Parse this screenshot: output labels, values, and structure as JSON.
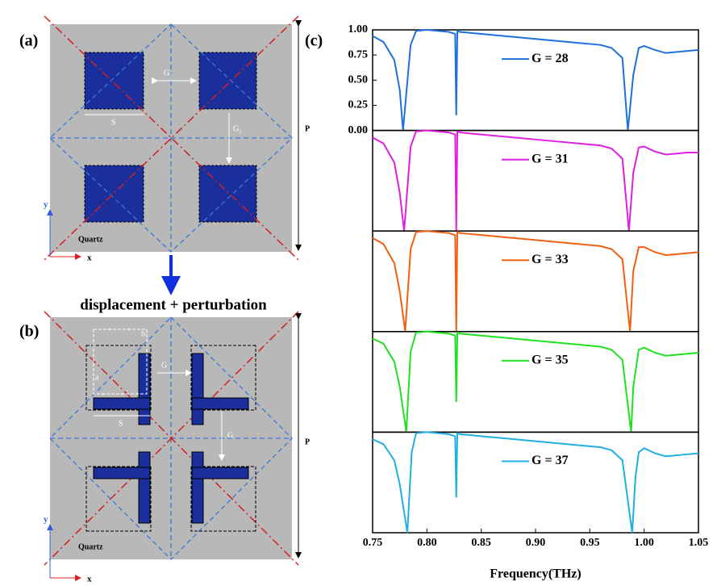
{
  "panel_labels": [
    "(a)",
    "(b)",
    "(c)"
  ],
  "panel_a": {
    "gap_labels": [
      "G₁",
      "G₁"
    ],
    "side": "S",
    "period": "P",
    "substrate": "Quartz",
    "axes": [
      "x",
      "y"
    ]
  },
  "transition": "displacement + perturbation",
  "panel_b": {
    "gap_labels": [
      "G",
      "G"
    ],
    "side": "S",
    "arm_labels": [
      "a",
      "b"
    ],
    "period": "P",
    "substrate": "Quartz",
    "axes": [
      "x",
      "y"
    ]
  },
  "chart_data": [
    {
      "type": "line",
      "xlim": [
        0.75,
        1.05
      ],
      "ylim": [
        0,
        1
      ],
      "yticks": [
        {
          "value": 1,
          "label": "1.00"
        },
        {
          "value": 0.75,
          "label": "0.75"
        },
        {
          "value": 0.5,
          "label": "0.50"
        },
        {
          "value": 0.25,
          "label": "0.25"
        },
        {
          "value": 0,
          "label": "0.00"
        }
      ],
      "x": [
        0.75,
        0.76,
        0.77,
        0.775,
        0.778,
        0.785,
        0.79,
        0.8,
        0.81,
        0.82,
        0.826,
        0.827,
        0.828,
        0.829,
        0.83,
        0.84,
        0.86,
        0.88,
        0.9,
        0.92,
        0.94,
        0.96,
        0.97,
        0.98,
        0.985,
        0.99,
        0.995,
        1.0,
        1.01,
        1.02,
        1.03,
        1.04,
        1.05
      ],
      "series": [
        {
          "name": "G = 28",
          "color": "#1f6fdc",
          "values": [
            0.94,
            0.88,
            0.7,
            0.4,
            0.0,
            0.85,
            0.99,
            1.0,
            0.99,
            0.98,
            0.96,
            0.15,
            0.99,
            0.99,
            0.98,
            0.97,
            0.95,
            0.93,
            0.91,
            0.89,
            0.87,
            0.85,
            0.82,
            0.72,
            0.0,
            0.55,
            0.82,
            0.84,
            0.8,
            0.77,
            0.78,
            0.79,
            0.8
          ]
        }
      ]
    },
    {
      "type": "line",
      "xlim": [
        0.75,
        1.05
      ],
      "ylim": [
        0,
        1
      ],
      "x": [
        0.75,
        0.76,
        0.77,
        0.775,
        0.779,
        0.785,
        0.79,
        0.8,
        0.81,
        0.82,
        0.826,
        0.827,
        0.828,
        0.829,
        0.83,
        0.84,
        0.86,
        0.88,
        0.9,
        0.92,
        0.94,
        0.96,
        0.97,
        0.98,
        0.986,
        0.99,
        0.995,
        1.0,
        1.01,
        1.02,
        1.03,
        1.04,
        1.05
      ],
      "series": [
        {
          "name": "G = 31",
          "color": "#e020e0",
          "values": [
            0.93,
            0.87,
            0.68,
            0.38,
            0.0,
            0.84,
            0.99,
            1.0,
            0.99,
            0.98,
            0.96,
            0.0,
            0.99,
            0.99,
            0.98,
            0.97,
            0.95,
            0.93,
            0.91,
            0.89,
            0.87,
            0.85,
            0.82,
            0.72,
            0.0,
            0.58,
            0.83,
            0.84,
            0.79,
            0.76,
            0.77,
            0.78,
            0.78
          ]
        }
      ]
    },
    {
      "type": "line",
      "xlim": [
        0.75,
        1.05
      ],
      "ylim": [
        0,
        1
      ],
      "x": [
        0.75,
        0.76,
        0.77,
        0.775,
        0.78,
        0.785,
        0.79,
        0.8,
        0.81,
        0.82,
        0.826,
        0.827,
        0.828,
        0.829,
        0.83,
        0.84,
        0.86,
        0.88,
        0.9,
        0.92,
        0.94,
        0.96,
        0.97,
        0.98,
        0.987,
        0.99,
        0.995,
        1.0,
        1.01,
        1.02,
        1.03,
        1.04,
        1.05
      ],
      "series": [
        {
          "name": "G = 33",
          "color": "#f06010",
          "values": [
            0.93,
            0.87,
            0.68,
            0.4,
            0.0,
            0.82,
            0.99,
            1.0,
            0.99,
            0.98,
            0.96,
            0.0,
            0.99,
            0.99,
            0.98,
            0.97,
            0.95,
            0.93,
            0.91,
            0.89,
            0.87,
            0.85,
            0.82,
            0.72,
            0.0,
            0.6,
            0.84,
            0.84,
            0.79,
            0.76,
            0.77,
            0.78,
            0.79
          ]
        }
      ]
    },
    {
      "type": "line",
      "xlim": [
        0.75,
        1.05
      ],
      "ylim": [
        0,
        1
      ],
      "x": [
        0.75,
        0.76,
        0.77,
        0.775,
        0.781,
        0.785,
        0.79,
        0.8,
        0.81,
        0.82,
        0.826,
        0.827,
        0.828,
        0.829,
        0.83,
        0.84,
        0.86,
        0.88,
        0.9,
        0.92,
        0.94,
        0.96,
        0.97,
        0.98,
        0.988,
        0.99,
        0.995,
        1.0,
        1.01,
        1.02,
        1.03,
        1.04,
        1.05
      ],
      "series": [
        {
          "name": "G = 35",
          "color": "#20e020",
          "values": [
            0.93,
            0.88,
            0.7,
            0.45,
            0.0,
            0.8,
            0.99,
            1.0,
            0.99,
            0.98,
            0.96,
            0.3,
            0.99,
            0.99,
            0.98,
            0.97,
            0.95,
            0.93,
            0.91,
            0.89,
            0.87,
            0.85,
            0.82,
            0.72,
            0.0,
            0.45,
            0.82,
            0.84,
            0.79,
            0.76,
            0.77,
            0.78,
            0.79
          ]
        }
      ]
    },
    {
      "type": "line",
      "xlim": [
        0.75,
        1.05
      ],
      "ylim": [
        0,
        1
      ],
      "xticks": [
        {
          "value": 0.75,
          "label": "0.75"
        },
        {
          "value": 0.8,
          "label": "0.80"
        },
        {
          "value": 0.85,
          "label": "0.85"
        },
        {
          "value": 0.9,
          "label": "0.90"
        },
        {
          "value": 0.95,
          "label": "0.95"
        },
        {
          "value": 1,
          "label": "1.00"
        },
        {
          "value": 1.05,
          "label": "1.05"
        }
      ],
      "xlabel": "Frequency(THz)",
      "x": [
        0.75,
        0.76,
        0.77,
        0.775,
        0.782,
        0.786,
        0.79,
        0.8,
        0.81,
        0.82,
        0.826,
        0.827,
        0.828,
        0.829,
        0.83,
        0.84,
        0.86,
        0.88,
        0.9,
        0.92,
        0.94,
        0.96,
        0.97,
        0.98,
        0.989,
        0.992,
        0.995,
        1.0,
        1.01,
        1.02,
        1.03,
        1.04,
        1.05
      ],
      "series": [
        {
          "name": "G = 37",
          "color": "#20b0e0",
          "values": [
            0.93,
            0.88,
            0.72,
            0.48,
            0.0,
            0.8,
            0.99,
            1.0,
            0.99,
            0.98,
            0.96,
            0.35,
            0.99,
            0.99,
            0.98,
            0.97,
            0.95,
            0.93,
            0.91,
            0.89,
            0.87,
            0.85,
            0.82,
            0.72,
            0.0,
            0.55,
            0.8,
            0.84,
            0.79,
            0.76,
            0.77,
            0.78,
            0.79
          ]
        }
      ]
    }
  ]
}
